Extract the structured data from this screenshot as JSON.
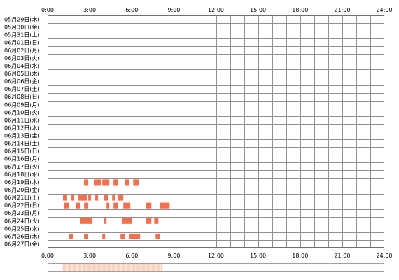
{
  "chart_data": {
    "type": "heatmap",
    "title": "",
    "xlabel": "",
    "ylabel": "",
    "x_range_hours": [
      0,
      24
    ],
    "x_ticks": [
      "0:00",
      "3:00",
      "6:00",
      "9:00",
      "12:00",
      "15:00",
      "18:00",
      "21:00",
      "24:00"
    ],
    "grid": true,
    "colors": {
      "mark": "#f07050",
      "summary": "#fbd3c0",
      "grid": "#909090",
      "frame": "#707070"
    },
    "rows": [
      {
        "label": "05月29日(木)",
        "spans": []
      },
      {
        "label": "05月30日(金)",
        "spans": []
      },
      {
        "label": "05月31日(土)",
        "spans": []
      },
      {
        "label": "06月01日(日)",
        "spans": []
      },
      {
        "label": "06月02日(月)",
        "spans": []
      },
      {
        "label": "06月03日(火)",
        "spans": []
      },
      {
        "label": "06月04日(水)",
        "spans": []
      },
      {
        "label": "06月05日(木)",
        "spans": []
      },
      {
        "label": "06月06日(金)",
        "spans": []
      },
      {
        "label": "06月07日(土)",
        "spans": []
      },
      {
        "label": "06月08日(日)",
        "spans": []
      },
      {
        "label": "06月09日(月)",
        "spans": []
      },
      {
        "label": "06月10日(火)",
        "spans": []
      },
      {
        "label": "06月11日(水)",
        "spans": []
      },
      {
        "label": "06月12日(木)",
        "spans": []
      },
      {
        "label": "06月13日(金)",
        "spans": []
      },
      {
        "label": "06月14日(土)",
        "spans": []
      },
      {
        "label": "06月15日(日)",
        "spans": []
      },
      {
        "label": "06月16日(月)",
        "spans": []
      },
      {
        "label": "06月17日(火)",
        "spans": []
      },
      {
        "label": "06月18日(水)",
        "spans": []
      },
      {
        "label": "06月19日(木)",
        "spans": [
          [
            2.6,
            2.9
          ],
          [
            3.3,
            3.8
          ],
          [
            3.9,
            4.4
          ],
          [
            4.7,
            5.0
          ],
          [
            5.5,
            5.8
          ],
          [
            6.1,
            6.5
          ]
        ]
      },
      {
        "label": "06月20日(金)",
        "spans": []
      },
      {
        "label": "06月21日(土)",
        "spans": [
          [
            1.1,
            1.4
          ],
          [
            1.7,
            1.9
          ],
          [
            2.2,
            2.8
          ],
          [
            2.9,
            3.1
          ],
          [
            3.4,
            3.6
          ],
          [
            4.0,
            4.3
          ],
          [
            4.6,
            4.8
          ],
          [
            5.0,
            5.4
          ]
        ]
      },
      {
        "label": "06月22日(日)",
        "spans": [
          [
            1.2,
            1.5
          ],
          [
            2.0,
            2.3
          ],
          [
            2.6,
            2.9
          ],
          [
            4.2,
            4.4
          ],
          [
            4.7,
            5.0
          ],
          [
            5.4,
            5.9
          ],
          [
            7.0,
            7.4
          ],
          [
            8.0,
            8.7
          ]
        ]
      },
      {
        "label": "06月23日(月)",
        "spans": []
      },
      {
        "label": "06月24日(火)",
        "spans": [
          [
            2.3,
            3.2
          ],
          [
            4.0,
            4.2
          ],
          [
            5.3,
            6.0
          ],
          [
            7.0,
            7.4
          ],
          [
            7.6,
            7.9
          ]
        ]
      },
      {
        "label": "06月25日(水)",
        "spans": []
      },
      {
        "label": "06月26日(木)",
        "spans": [
          [
            1.5,
            1.8
          ],
          [
            2.6,
            2.9
          ],
          [
            3.9,
            4.1
          ],
          [
            5.2,
            5.5
          ],
          [
            5.8,
            6.6
          ],
          [
            7.7,
            8.0
          ]
        ]
      },
      {
        "label": "06月27日(金)",
        "spans": []
      }
    ],
    "summary_range_hours": [
      1.0,
      8.2
    ]
  }
}
